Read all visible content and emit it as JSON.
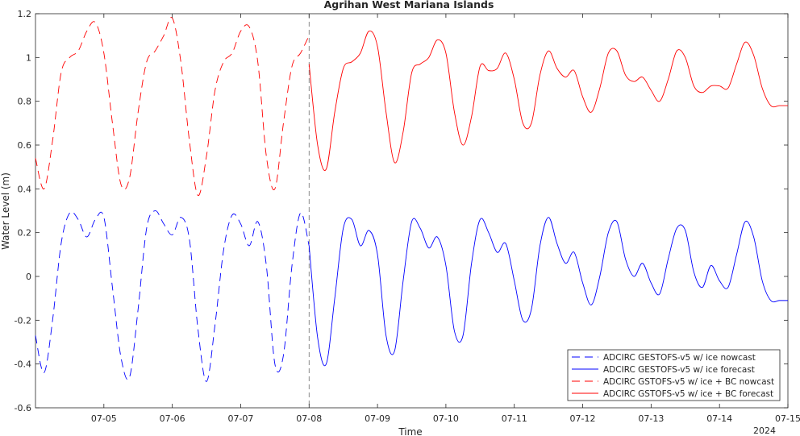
{
  "chart_data": {
    "type": "line",
    "title": "Agrihan West Mariana Islands",
    "xlabel": "Time",
    "ylabel": "Water Level (m)",
    "x_year_label": "2024",
    "xlim": [
      "2024-07-04",
      "2024-07-15"
    ],
    "ylim": [
      -0.6,
      1.2
    ],
    "x_ticks": [
      "07-05",
      "07-06",
      "07-07",
      "07-08",
      "07-09",
      "07-10",
      "07-11",
      "07-12",
      "07-13",
      "07-14",
      "07-15"
    ],
    "y_ticks": [
      "-0.6",
      "-0.4",
      "-0.2",
      "0",
      "0.2",
      "0.4",
      "0.6",
      "0.8",
      "1",
      "1.2"
    ],
    "grid": false,
    "legend_position": "bottom-right",
    "nowcast_end": "2024-07-08",
    "series": [
      {
        "name": "ADCIRC GESTOFS-v5 w/ ice nowcast",
        "color": "#0000ff",
        "dash": "dashed",
        "x": [
          "2024-07-04 00:00",
          "2024-07-04 03:00",
          "2024-07-04 06:00",
          "2024-07-04 09:00",
          "2024-07-04 12:00",
          "2024-07-04 15:00",
          "2024-07-04 18:00",
          "2024-07-04 21:00",
          "2024-07-05 00:00",
          "2024-07-05 03:00",
          "2024-07-05 06:00",
          "2024-07-05 09:00",
          "2024-07-05 12:00",
          "2024-07-05 15:00",
          "2024-07-05 18:00",
          "2024-07-05 21:00",
          "2024-07-06 00:00",
          "2024-07-06 03:00",
          "2024-07-06 06:00",
          "2024-07-06 09:00",
          "2024-07-06 12:00",
          "2024-07-06 15:00",
          "2024-07-06 18:00",
          "2024-07-06 21:00",
          "2024-07-07 00:00",
          "2024-07-07 03:00",
          "2024-07-07 06:00",
          "2024-07-07 09:00",
          "2024-07-07 12:00",
          "2024-07-07 15:00",
          "2024-07-07 18:00",
          "2024-07-07 21:00",
          "2024-07-08 00:00"
        ],
        "y": [
          -0.27,
          -0.44,
          -0.2,
          0.15,
          0.29,
          0.26,
          0.18,
          0.26,
          0.27,
          -0.05,
          -0.37,
          -0.46,
          -0.15,
          0.22,
          0.3,
          0.24,
          0.19,
          0.27,
          0.17,
          -0.24,
          -0.48,
          -0.22,
          0.12,
          0.28,
          0.24,
          0.14,
          0.25,
          0.05,
          -0.4,
          -0.36,
          0.05,
          0.29,
          0.14
        ]
      },
      {
        "name": "ADCIRC GESTOFS-v5 w/ ice forecast",
        "color": "#0000ff",
        "dash": "solid",
        "x": [
          "2024-07-08 00:00",
          "2024-07-08 03:00",
          "2024-07-08 06:00",
          "2024-07-08 09:00",
          "2024-07-08 12:00",
          "2024-07-08 15:00",
          "2024-07-08 18:00",
          "2024-07-08 21:00",
          "2024-07-09 00:00",
          "2024-07-09 03:00",
          "2024-07-09 06:00",
          "2024-07-09 09:00",
          "2024-07-09 12:00",
          "2024-07-09 15:00",
          "2024-07-09 18:00",
          "2024-07-09 21:00",
          "2024-07-10 00:00",
          "2024-07-10 03:00",
          "2024-07-10 06:00",
          "2024-07-10 09:00",
          "2024-07-10 12:00",
          "2024-07-10 15:00",
          "2024-07-10 18:00",
          "2024-07-10 21:00",
          "2024-07-11 00:00",
          "2024-07-11 03:00",
          "2024-07-11 06:00",
          "2024-07-11 09:00",
          "2024-07-11 12:00",
          "2024-07-11 15:00",
          "2024-07-11 18:00",
          "2024-07-11 21:00",
          "2024-07-12 00:00",
          "2024-07-12 03:00",
          "2024-07-12 06:00",
          "2024-07-12 09:00",
          "2024-07-12 12:00",
          "2024-07-12 15:00",
          "2024-07-12 18:00",
          "2024-07-12 21:00",
          "2024-07-13 00:00",
          "2024-07-13 03:00",
          "2024-07-13 06:00",
          "2024-07-13 09:00",
          "2024-07-13 12:00",
          "2024-07-13 15:00",
          "2024-07-13 18:00",
          "2024-07-13 21:00",
          "2024-07-14 00:00",
          "2024-07-14 03:00",
          "2024-07-14 06:00",
          "2024-07-14 09:00",
          "2024-07-14 12:00",
          "2024-07-14 15:00",
          "2024-07-14 18:00",
          "2024-07-14 21:00",
          "2024-07-15 00:00"
        ],
        "y": [
          0.14,
          -0.28,
          -0.4,
          -0.1,
          0.22,
          0.26,
          0.14,
          0.21,
          0.1,
          -0.27,
          -0.34,
          -0.02,
          0.25,
          0.22,
          0.13,
          0.18,
          0.05,
          -0.25,
          -0.27,
          0.06,
          0.26,
          0.2,
          0.11,
          0.15,
          -0.02,
          -0.2,
          -0.15,
          0.14,
          0.27,
          0.15,
          0.06,
          0.11,
          -0.03,
          -0.13,
          0.0,
          0.2,
          0.25,
          0.08,
          0.0,
          0.06,
          -0.03,
          -0.08,
          0.08,
          0.22,
          0.21,
          0.02,
          -0.05,
          0.05,
          -0.02,
          -0.05,
          0.1,
          0.25,
          0.18,
          -0.02,
          -0.11,
          -0.11,
          -0.11
        ]
      },
      {
        "name": "ADCIRC GSTOFS-v5 w/ ice + BC nowcast",
        "color": "#ff0000",
        "dash": "dashed",
        "x": [
          "2024-07-04 00:00",
          "2024-07-04 03:00",
          "2024-07-04 06:00",
          "2024-07-04 09:00",
          "2024-07-04 12:00",
          "2024-07-04 15:00",
          "2024-07-04 18:00",
          "2024-07-04 21:00",
          "2024-07-05 00:00",
          "2024-07-05 03:00",
          "2024-07-05 06:00",
          "2024-07-05 09:00",
          "2024-07-05 12:00",
          "2024-07-05 15:00",
          "2024-07-05 18:00",
          "2024-07-05 21:00",
          "2024-07-06 00:00",
          "2024-07-06 03:00",
          "2024-07-06 06:00",
          "2024-07-06 09:00",
          "2024-07-06 12:00",
          "2024-07-06 15:00",
          "2024-07-06 18:00",
          "2024-07-06 21:00",
          "2024-07-07 00:00",
          "2024-07-07 03:00",
          "2024-07-07 06:00",
          "2024-07-07 09:00",
          "2024-07-07 12:00",
          "2024-07-07 15:00",
          "2024-07-07 18:00",
          "2024-07-07 21:00",
          "2024-07-08 00:00"
        ],
        "y": [
          0.54,
          0.4,
          0.62,
          0.93,
          1.0,
          1.03,
          1.12,
          1.16,
          1.02,
          0.7,
          0.42,
          0.45,
          0.75,
          0.98,
          1.03,
          1.1,
          1.18,
          0.98,
          0.62,
          0.37,
          0.55,
          0.85,
          0.98,
          1.02,
          1.12,
          1.14,
          0.98,
          0.55,
          0.4,
          0.7,
          0.96,
          1.02,
          1.1
        ]
      },
      {
        "name": "ADCIRC GSTOFS-v5 w/ ice + BC forecast",
        "color": "#ff0000",
        "dash": "solid",
        "x": [
          "2024-07-08 00:00",
          "2024-07-08 03:00",
          "2024-07-08 06:00",
          "2024-07-08 09:00",
          "2024-07-08 12:00",
          "2024-07-08 15:00",
          "2024-07-08 18:00",
          "2024-07-08 21:00",
          "2024-07-09 00:00",
          "2024-07-09 03:00",
          "2024-07-09 06:00",
          "2024-07-09 09:00",
          "2024-07-09 12:00",
          "2024-07-09 15:00",
          "2024-07-09 18:00",
          "2024-07-09 21:00",
          "2024-07-10 00:00",
          "2024-07-10 03:00",
          "2024-07-10 06:00",
          "2024-07-10 09:00",
          "2024-07-10 12:00",
          "2024-07-10 15:00",
          "2024-07-10 18:00",
          "2024-07-10 21:00",
          "2024-07-11 00:00",
          "2024-07-11 03:00",
          "2024-07-11 06:00",
          "2024-07-11 09:00",
          "2024-07-11 12:00",
          "2024-07-11 15:00",
          "2024-07-11 18:00",
          "2024-07-11 21:00",
          "2024-07-12 00:00",
          "2024-07-12 03:00",
          "2024-07-12 06:00",
          "2024-07-12 09:00",
          "2024-07-12 12:00",
          "2024-07-12 15:00",
          "2024-07-12 18:00",
          "2024-07-12 21:00",
          "2024-07-13 00:00",
          "2024-07-13 03:00",
          "2024-07-13 06:00",
          "2024-07-13 09:00",
          "2024-07-13 12:00",
          "2024-07-13 15:00",
          "2024-07-13 18:00",
          "2024-07-13 21:00",
          "2024-07-14 00:00",
          "2024-07-14 03:00",
          "2024-07-14 06:00",
          "2024-07-14 09:00",
          "2024-07-14 12:00",
          "2024-07-14 15:00",
          "2024-07-14 18:00",
          "2024-07-14 21:00",
          "2024-07-15 00:00"
        ],
        "y": [
          0.97,
          0.6,
          0.49,
          0.75,
          0.95,
          0.98,
          1.02,
          1.12,
          1.05,
          0.75,
          0.52,
          0.66,
          0.93,
          0.97,
          1.0,
          1.08,
          1.02,
          0.75,
          0.6,
          0.73,
          0.96,
          0.94,
          0.95,
          1.02,
          0.9,
          0.7,
          0.7,
          0.92,
          1.03,
          0.95,
          0.91,
          0.94,
          0.82,
          0.75,
          0.86,
          1.02,
          1.03,
          0.92,
          0.89,
          0.91,
          0.85,
          0.8,
          0.9,
          1.03,
          1.0,
          0.87,
          0.84,
          0.87,
          0.87,
          0.86,
          0.97,
          1.07,
          1.01,
          0.86,
          0.78,
          0.78,
          0.78
        ]
      }
    ]
  }
}
